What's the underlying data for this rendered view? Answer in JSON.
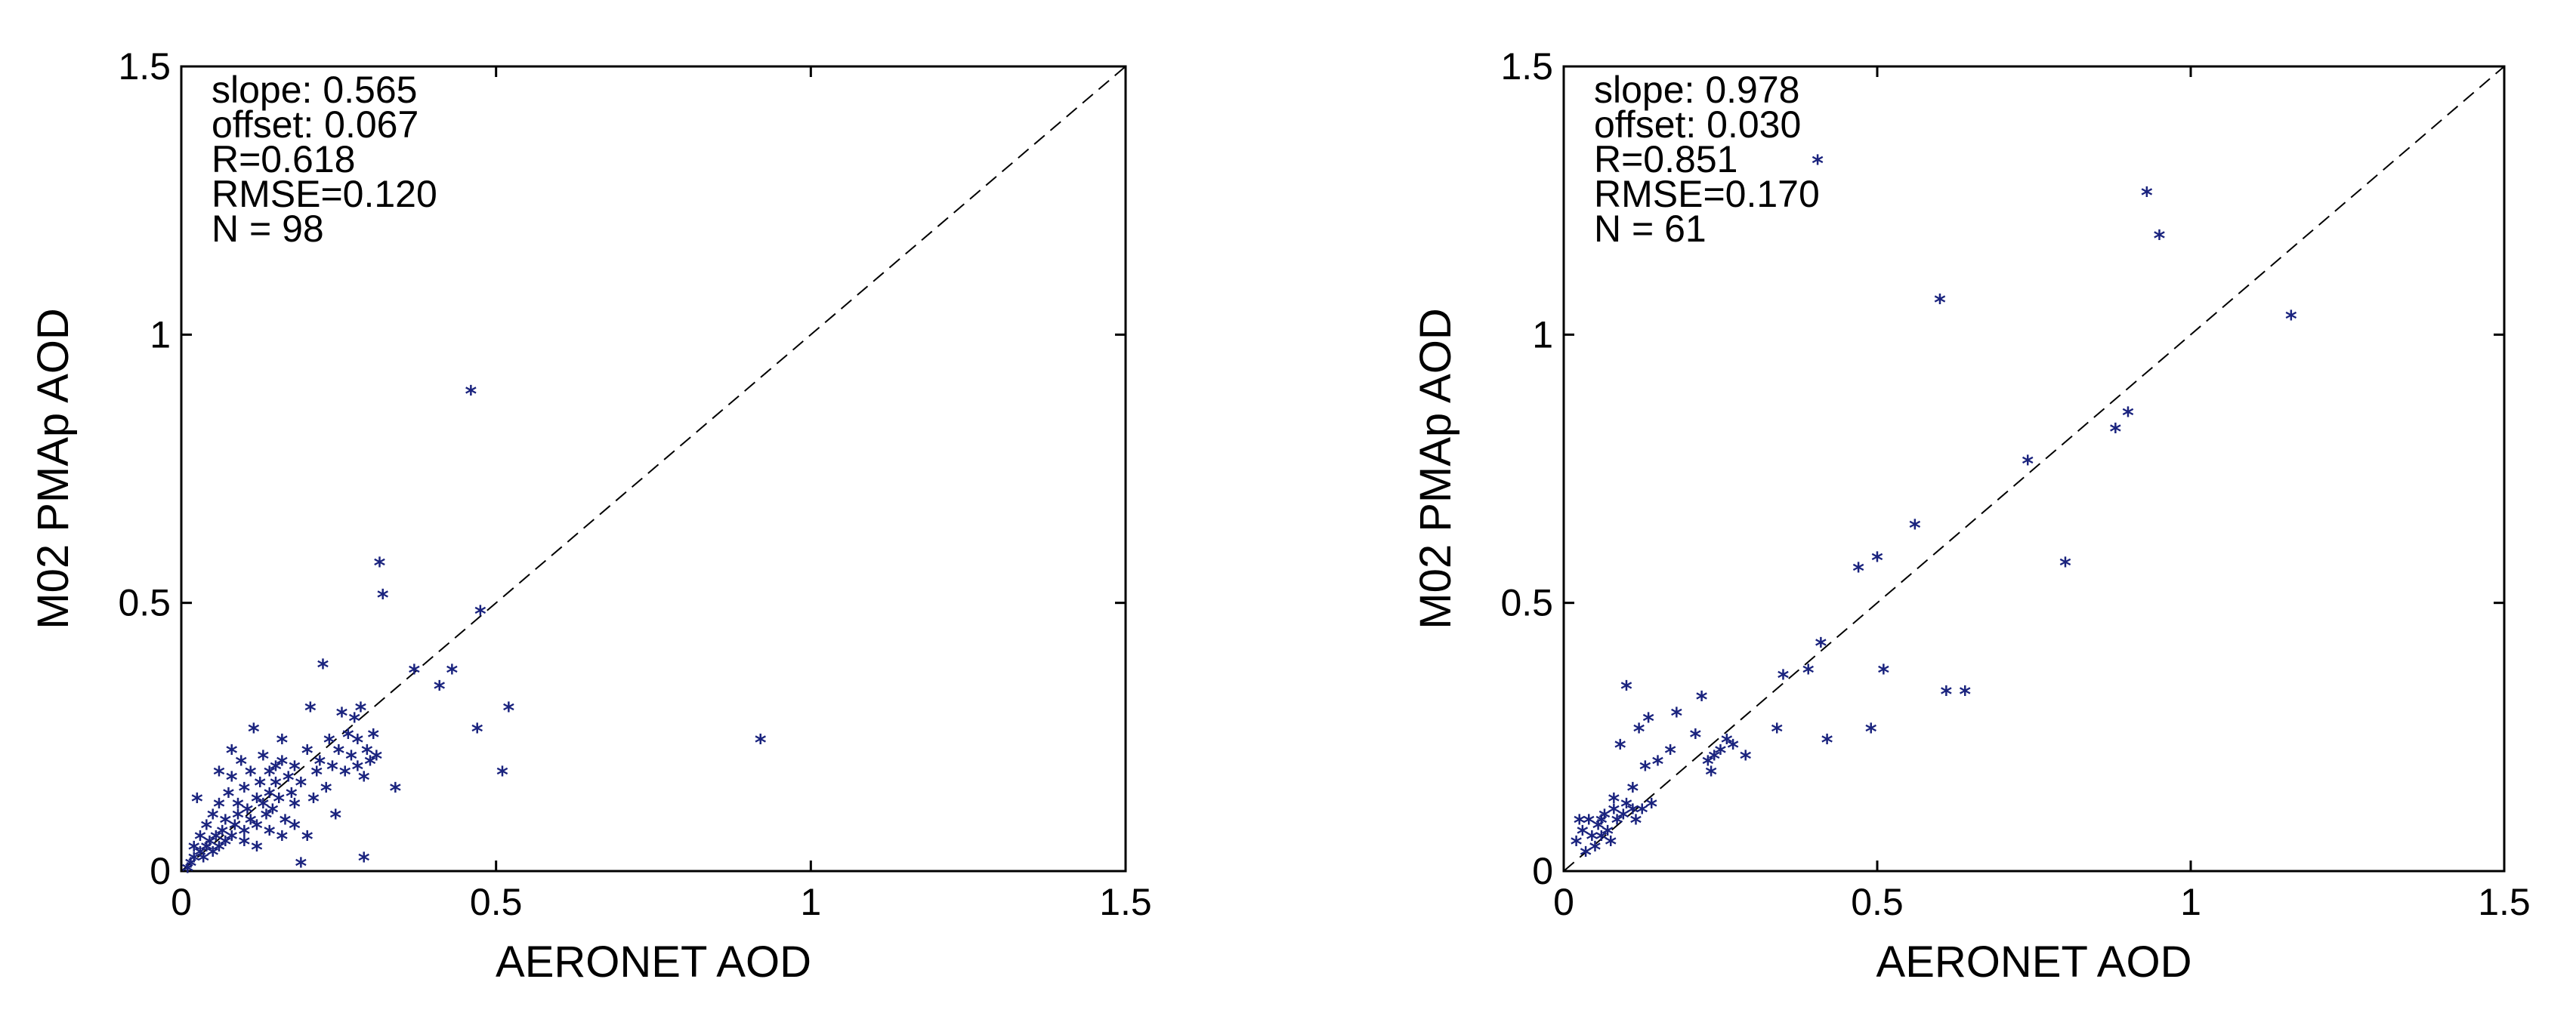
{
  "chart_data": [
    {
      "type": "scatter",
      "title": "",
      "xlabel": "AERONET AOD",
      "ylabel": "M02 PMAp AOD",
      "xlim": [
        0,
        1.5
      ],
      "ylim": [
        0,
        1.5
      ],
      "xticks": [
        "0",
        "0.5",
        "1",
        "1.5"
      ],
      "yticks": [
        "0",
        "0.5",
        "1",
        "1.5"
      ],
      "reference_line": "1:1 dashed",
      "grid": false,
      "stats": [
        "slope: 0.565",
        "offset: 0.067",
        "R=0.618",
        "RMSE=0.120",
        "N = 98"
      ],
      "marker_color": "#1a237e",
      "points": [
        [
          0.01,
          0.0
        ],
        [
          0.015,
          0.01
        ],
        [
          0.02,
          0.02
        ],
        [
          0.02,
          0.04
        ],
        [
          0.025,
          0.13
        ],
        [
          0.03,
          0.03
        ],
        [
          0.03,
          0.06
        ],
        [
          0.035,
          0.02
        ],
        [
          0.04,
          0.04
        ],
        [
          0.04,
          0.08
        ],
        [
          0.045,
          0.05
        ],
        [
          0.05,
          0.03
        ],
        [
          0.05,
          0.1
        ],
        [
          0.055,
          0.06
        ],
        [
          0.06,
          0.04
        ],
        [
          0.06,
          0.12
        ],
        [
          0.065,
          0.07
        ],
        [
          0.07,
          0.05
        ],
        [
          0.07,
          0.09
        ],
        [
          0.075,
          0.14
        ],
        [
          0.08,
          0.06
        ],
        [
          0.08,
          0.17
        ],
        [
          0.085,
          0.08
        ],
        [
          0.09,
          0.1
        ],
        [
          0.09,
          0.12
        ],
        [
          0.095,
          0.2
        ],
        [
          0.1,
          0.07
        ],
        [
          0.1,
          0.15
        ],
        [
          0.105,
          0.11
        ],
        [
          0.11,
          0.09
        ],
        [
          0.11,
          0.18
        ],
        [
          0.115,
          0.26
        ],
        [
          0.12,
          0.13
        ],
        [
          0.12,
          0.08
        ],
        [
          0.125,
          0.16
        ],
        [
          0.13,
          0.12
        ],
        [
          0.13,
          0.21
        ],
        [
          0.135,
          0.1
        ],
        [
          0.14,
          0.14
        ],
        [
          0.14,
          0.18
        ],
        [
          0.145,
          0.11
        ],
        [
          0.15,
          0.16
        ],
        [
          0.15,
          0.19
        ],
        [
          0.155,
          0.13
        ],
        [
          0.16,
          0.2
        ],
        [
          0.16,
          0.24
        ],
        [
          0.165,
          0.09
        ],
        [
          0.17,
          0.17
        ],
        [
          0.175,
          0.14
        ],
        [
          0.18,
          0.19
        ],
        [
          0.18,
          0.12
        ],
        [
          0.19,
          0.01
        ],
        [
          0.19,
          0.16
        ],
        [
          0.2,
          0.22
        ],
        [
          0.2,
          0.06
        ],
        [
          0.205,
          0.3
        ],
        [
          0.21,
          0.13
        ],
        [
          0.215,
          0.18
        ],
        [
          0.22,
          0.2
        ],
        [
          0.225,
          0.38
        ],
        [
          0.23,
          0.15
        ],
        [
          0.235,
          0.24
        ],
        [
          0.24,
          0.19
        ],
        [
          0.245,
          0.1
        ],
        [
          0.25,
          0.22
        ],
        [
          0.255,
          0.29
        ],
        [
          0.26,
          0.18
        ],
        [
          0.265,
          0.25
        ],
        [
          0.27,
          0.21
        ],
        [
          0.275,
          0.28
        ],
        [
          0.28,
          0.24
        ],
        [
          0.28,
          0.19
        ],
        [
          0.285,
          0.3
        ],
        [
          0.29,
          0.02
        ],
        [
          0.29,
          0.17
        ],
        [
          0.295,
          0.22
        ],
        [
          0.3,
          0.2
        ],
        [
          0.305,
          0.25
        ],
        [
          0.31,
          0.21
        ],
        [
          0.315,
          0.57
        ],
        [
          0.32,
          0.51
        ],
        [
          0.34,
          0.15
        ],
        [
          0.37,
          0.37
        ],
        [
          0.41,
          0.34
        ],
        [
          0.43,
          0.37
        ],
        [
          0.46,
          0.89
        ],
        [
          0.47,
          0.26
        ],
        [
          0.475,
          0.48
        ],
        [
          0.51,
          0.18
        ],
        [
          0.52,
          0.3
        ],
        [
          0.92,
          0.24
        ],
        [
          0.06,
          0.18
        ],
        [
          0.08,
          0.22
        ],
        [
          0.1,
          0.05
        ],
        [
          0.12,
          0.04
        ],
        [
          0.14,
          0.07
        ],
        [
          0.16,
          0.06
        ],
        [
          0.18,
          0.08
        ]
      ]
    },
    {
      "type": "scatter",
      "title": "",
      "xlabel": "AERONET AOD",
      "ylabel": "M02 PMAp AOD",
      "xlim": [
        0,
        1.5
      ],
      "ylim": [
        0,
        1.5
      ],
      "xticks": [
        "0",
        "0.5",
        "1",
        "1.5"
      ],
      "yticks": [
        "0",
        "0.5",
        "1",
        "1.5"
      ],
      "reference_line": "1:1 dashed",
      "grid": false,
      "stats": [
        "slope: 0.978",
        "offset: 0.030",
        "R=0.851",
        "RMSE=0.170",
        "N = 61"
      ],
      "marker_color": "#1a237e",
      "points": [
        [
          0.02,
          0.05
        ],
        [
          0.025,
          0.09
        ],
        [
          0.03,
          0.07
        ],
        [
          0.035,
          0.03
        ],
        [
          0.04,
          0.09
        ],
        [
          0.045,
          0.06
        ],
        [
          0.05,
          0.04
        ],
        [
          0.055,
          0.08
        ],
        [
          0.06,
          0.06
        ],
        [
          0.065,
          0.1
        ],
        [
          0.07,
          0.07
        ],
        [
          0.075,
          0.05
        ],
        [
          0.08,
          0.13
        ],
        [
          0.085,
          0.09
        ],
        [
          0.09,
          0.23
        ],
        [
          0.095,
          0.1
        ],
        [
          0.1,
          0.34
        ],
        [
          0.1,
          0.12
        ],
        [
          0.11,
          0.15
        ],
        [
          0.115,
          0.09
        ],
        [
          0.12,
          0.26
        ],
        [
          0.125,
          0.11
        ],
        [
          0.13,
          0.19
        ],
        [
          0.135,
          0.28
        ],
        [
          0.14,
          0.12
        ],
        [
          0.15,
          0.2
        ],
        [
          0.17,
          0.22
        ],
        [
          0.18,
          0.29
        ],
        [
          0.21,
          0.25
        ],
        [
          0.22,
          0.32
        ],
        [
          0.23,
          0.2
        ],
        [
          0.235,
          0.18
        ],
        [
          0.25,
          0.22
        ],
        [
          0.26,
          0.24
        ],
        [
          0.27,
          0.23
        ],
        [
          0.29,
          0.21
        ],
        [
          0.34,
          0.26
        ],
        [
          0.35,
          0.36
        ],
        [
          0.39,
          0.37
        ],
        [
          0.41,
          0.42
        ],
        [
          0.405,
          1.32
        ],
        [
          0.42,
          0.24
        ],
        [
          0.47,
          0.56
        ],
        [
          0.49,
          0.26
        ],
        [
          0.5,
          0.58
        ],
        [
          0.51,
          0.37
        ],
        [
          0.56,
          0.64
        ],
        [
          0.6,
          1.06
        ],
        [
          0.61,
          0.33
        ],
        [
          0.64,
          0.33
        ],
        [
          0.74,
          0.76
        ],
        [
          0.8,
          0.57
        ],
        [
          0.88,
          0.82
        ],
        [
          0.9,
          0.85
        ],
        [
          0.93,
          1.26
        ],
        [
          0.95,
          1.18
        ],
        [
          1.16,
          1.03
        ],
        [
          0.08,
          0.11
        ],
        [
          0.11,
          0.11
        ],
        [
          0.06,
          0.09
        ],
        [
          0.24,
          0.21
        ]
      ]
    }
  ]
}
